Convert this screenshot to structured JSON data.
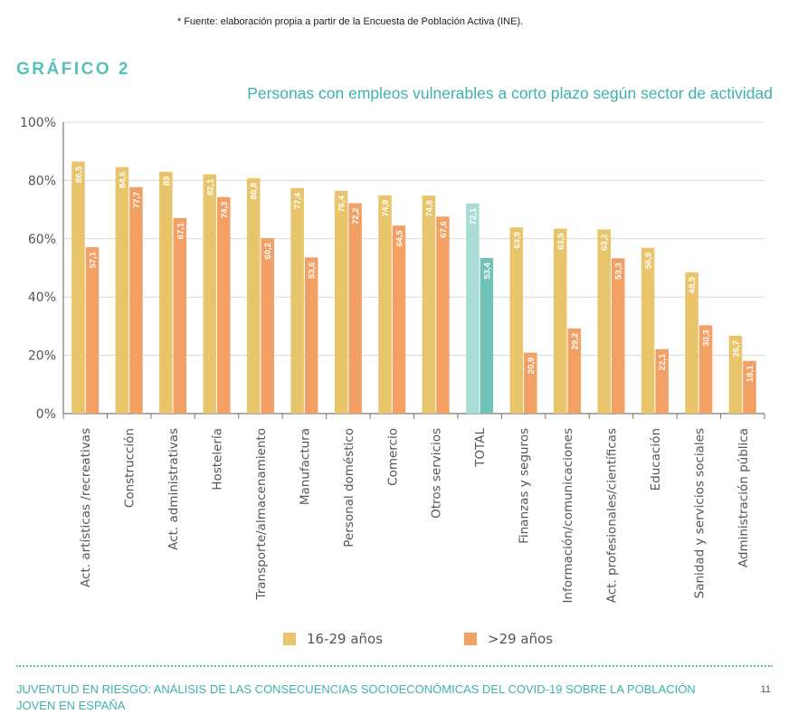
{
  "source_note": "* Fuente: elaboración propia a partir de la Encuesta de Población Activa (INE).",
  "figure_label": "GRÁFICO 2",
  "chart_data": {
    "type": "bar",
    "title": "Personas con empleos vulnerables a corto plazo según sector de actividad",
    "categories": [
      "Act. artísticas /recreativas",
      "Construcción",
      "Act. administrativas",
      "Hostelería",
      "Transporte/almacenamiento",
      "Manufactura",
      "Personal doméstico",
      "Comercio",
      "Otros servicios",
      "TOTAL",
      "Finanzas y seguros",
      "Información/comunicaciones",
      "Act. profesionales/científicas",
      "Educación",
      "Sanidad y servicios sociales",
      "Administración pública"
    ],
    "series": [
      {
        "name": "16-29 años",
        "color": "#e8c46a",
        "values": [
          86.5,
          84.6,
          83,
          82.1,
          80.8,
          77.4,
          76.4,
          74.9,
          74.8,
          72.1,
          63.9,
          63.5,
          63.2,
          56.9,
          48.5,
          26.7
        ],
        "labels": [
          "86,5",
          "84,6",
          "83",
          "82,1",
          "80,8",
          "77,4",
          "76,4",
          "74,9",
          "74,8",
          "72,1",
          "63,9",
          "63,5",
          "63,2",
          "56,9",
          "48,5",
          "26,7"
        ]
      },
      {
        "name": ">29 años",
        "color": "#f2a064",
        "values": [
          57.1,
          77.7,
          67.1,
          74.3,
          60.2,
          53.6,
          72.2,
          64.5,
          67.6,
          53.4,
          20.9,
          29.2,
          53.3,
          22.1,
          30.3,
          18.1
        ],
        "labels": [
          "57,1",
          "77,7",
          "67,1",
          "74,3",
          "60,2",
          "53,6",
          "72,2",
          "64,5",
          "67,6",
          "53,4",
          "20,9",
          "29,2",
          "53,3",
          "22,1",
          "30,3",
          "18,1"
        ]
      }
    ],
    "highlight": {
      "category": "TOTAL",
      "colors": [
        "#a8dcd4",
        "#6fc3b8"
      ]
    },
    "ylim": [
      0,
      100
    ],
    "yticks": [
      "0%",
      "20%",
      "40%",
      "60%",
      "80%",
      "100%"
    ],
    "grid": true,
    "legend": "bottom"
  },
  "footer": {
    "text": "JUVENTUD EN RIESGO: ANÁLISIS DE LAS CONSECUENCIAS SOCIOECONÓMICAS DEL COVID-19 SOBRE LA POBLACIÓN JOVEN EN ESPAÑA",
    "page": "11"
  }
}
